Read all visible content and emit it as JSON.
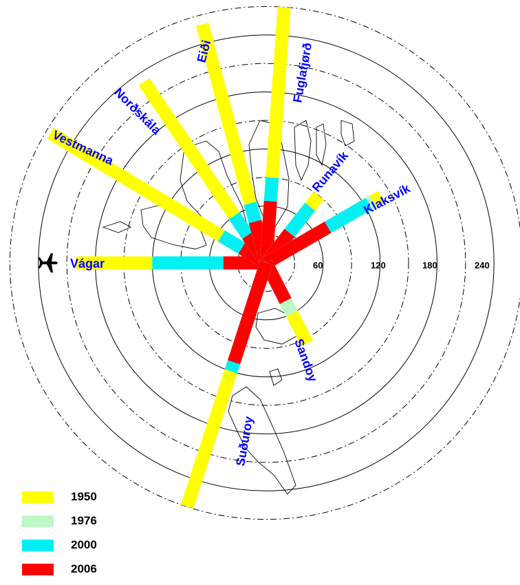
{
  "chart_data": {
    "type": "radial-bar",
    "rings": [
      30,
      60,
      90,
      120,
      150,
      180,
      210,
      240,
      270
    ],
    "ring_labels": [
      "60",
      "120",
      "180",
      "240"
    ],
    "series": [
      {
        "name": "1950",
        "color": "#ffff00"
      },
      {
        "name": "1976",
        "color": "#bff7c6"
      },
      {
        "name": "2000",
        "color": "#00f0f4"
      },
      {
        "name": "2006",
        "color": "#ff0000"
      }
    ],
    "routes": [
      {
        "name": "Vágar",
        "bearing": 270,
        "values": {
          "1950": 200,
          "1976": 120,
          "2000": 120,
          "2006": 45
        }
      },
      {
        "name": "Vestmanna",
        "bearing": 301,
        "values": {
          "1950": 265,
          "1976": 55,
          "2000": 55,
          "2006": 30
        }
      },
      {
        "name": "Norðskála",
        "bearing": 326,
        "values": {
          "1950": 230,
          "1976": 60,
          "2000": 60,
          "2006": 35
        }
      },
      {
        "name": "Eiði",
        "bearing": 345,
        "values": {
          "1950": 260,
          "1976": 65,
          "2000": 65,
          "2006": 45
        }
      },
      {
        "name": "Fuglafjørð",
        "bearing": 4,
        "values": {
          "1950": 270,
          "1976": 90,
          "2000": 90,
          "2006": 65
        }
      },
      {
        "name": "Runavík",
        "bearing": 38,
        "values": {
          "1950": 90,
          "1976": 75,
          "2000": 75,
          "2006": 40
        }
      },
      {
        "name": "Klaksvík",
        "bearing": 60,
        "values": {
          "1950": 140,
          "1976": 130,
          "2000": 125,
          "2006": 75
        }
      },
      {
        "name": "Sandoy",
        "bearing": 153,
        "values": {
          "1950": 95,
          "1976": 60,
          "2000": 45,
          "2006": 45
        }
      },
      {
        "name": "Suðuroy",
        "bearing": 198,
        "values": {
          "1950": 270,
          "1976": 120,
          "2000": 120,
          "2006": 110
        }
      }
    ]
  },
  "icons": {
    "airplane": "airplane-icon"
  },
  "legend": {
    "items": [
      {
        "label": "1950",
        "color": "#ffff00"
      },
      {
        "label": "1976",
        "color": "#bff7c6"
      },
      {
        "label": "2000",
        "color": "#00f0f4"
      },
      {
        "label": "2006",
        "color": "#ff0000"
      }
    ]
  }
}
